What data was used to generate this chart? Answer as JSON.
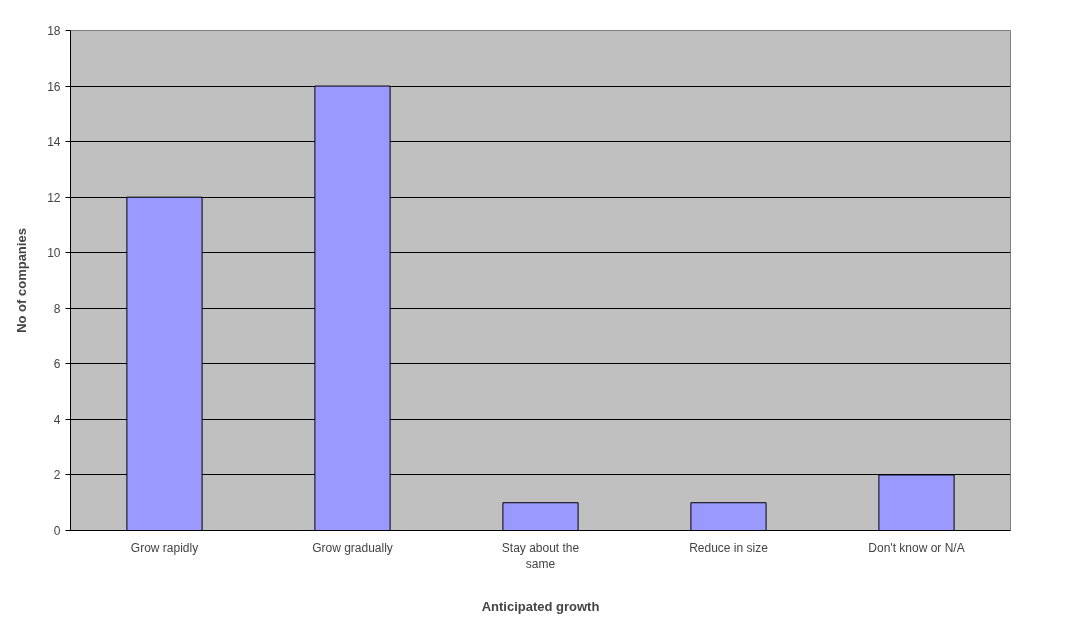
{
  "chart_data": {
    "type": "bar",
    "xlabel": "Anticipated growth",
    "ylabel": "No of companies",
    "categories": [
      "Grow rapidly",
      "Grow gradually",
      "Stay about the same",
      "Reduce in size",
      "Don't know or N/A"
    ],
    "values": [
      12,
      16,
      1,
      1,
      2
    ],
    "color": "#9999ff",
    "ylim": [
      0,
      18
    ],
    "yticks": [
      0,
      2,
      4,
      6,
      8,
      10,
      12,
      14,
      16,
      18
    ],
    "grid": "y"
  }
}
